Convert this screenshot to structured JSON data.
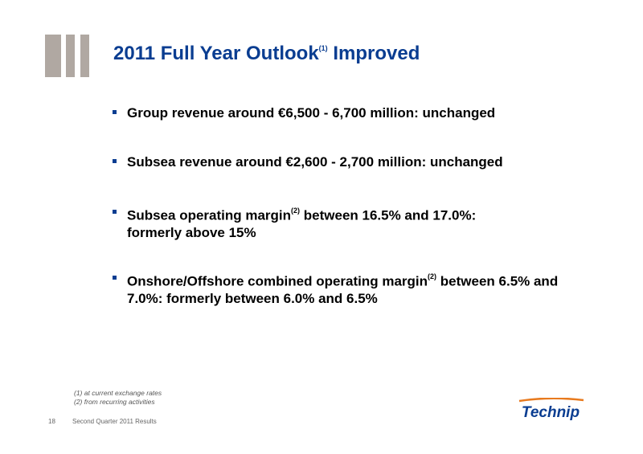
{
  "slide": {
    "title": "2011 Full Year Outlook",
    "title_sup": "(1)",
    "title_suffix": " Improved",
    "brand_color": "#0a3d91"
  },
  "bullets": [
    {
      "text": "Group revenue around €6,500 - 6,700 million: unchanged"
    },
    {
      "text": "Subsea revenue around €2,600 -  2,700 million: unchanged"
    },
    {
      "before": "Subsea operating margin",
      "sup": "(2)",
      "after": " between 16.5% and 17.0%:",
      "line2": "formerly above 15%"
    },
    {
      "before": "Onshore/Offshore combined operating margin",
      "sup": "(2)",
      "after": " between 6.5% and",
      "line2": "7.0%: formerly between 6.0% and 6.5%"
    }
  ],
  "footnotes": [
    "(1) at current exchange rates",
    "(2) from recurring activities"
  ],
  "footer": {
    "page": "18",
    "text": "Second Quarter 2011 Results"
  },
  "logo": {
    "text": "Technip",
    "icon": "technip-logo-icon"
  }
}
